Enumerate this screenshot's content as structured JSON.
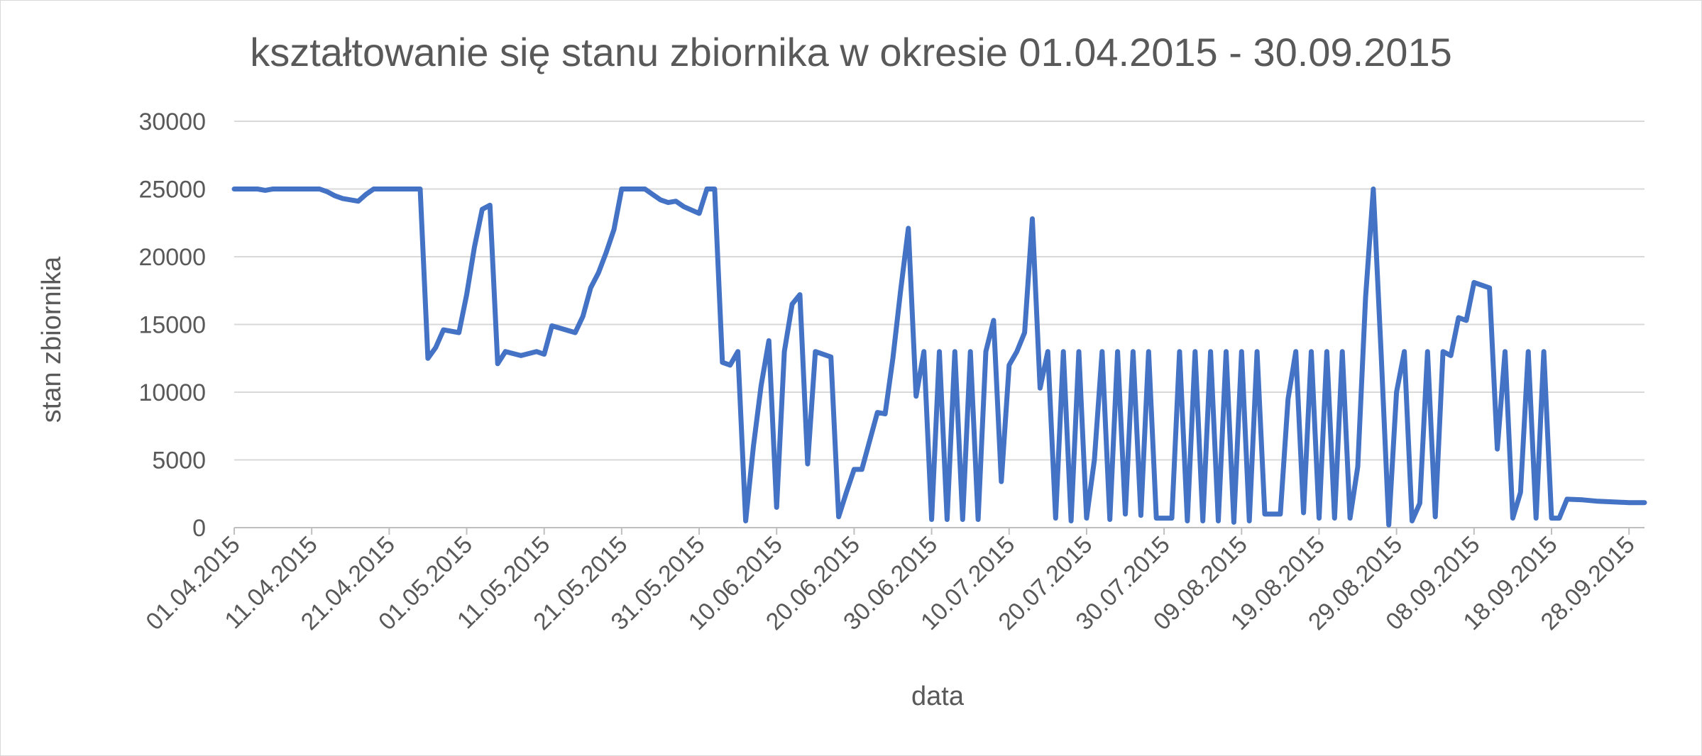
{
  "chart_data": {
    "type": "line",
    "title": "kształtowanie się stanu zbiornika w okresie 01.04.2015 - 30.09.2015",
    "xlabel": "data",
    "ylabel": "stan zbiornika",
    "ylim": [
      0,
      30000
    ],
    "yticks": [
      "0",
      "5000",
      "10000",
      "15000",
      "20000",
      "25000",
      "30000"
    ],
    "x_range": [
      "01.04.2015",
      "30.09.2015"
    ],
    "xticks": [
      "01.04.2015",
      "11.04.2015",
      "21.04.2015",
      "01.05.2015",
      "11.05.2015",
      "21.05.2015",
      "31.05.2015",
      "10.06.2015",
      "20.06.2015",
      "30.06.2015",
      "10.07.2015",
      "20.07.2015",
      "30.07.2015",
      "09.08.2015",
      "19.08.2015",
      "29.08.2015",
      "08.09.2015",
      "18.09.2015",
      "28.09.2015"
    ],
    "grid": true,
    "legend": "none",
    "color": "#4472c4",
    "series": [
      {
        "points": [
          [
            "01.04.2015",
            25000
          ],
          [
            "04.04.2015",
            25000
          ],
          [
            "05.04.2015",
            24900
          ],
          [
            "06.04.2015",
            25000
          ],
          [
            "12.04.2015",
            25000
          ],
          [
            "13.04.2015",
            24800
          ],
          [
            "14.04.2015",
            24500
          ],
          [
            "15.04.2015",
            24300
          ],
          [
            "17.04.2015",
            24100
          ],
          [
            "18.04.2015",
            24600
          ],
          [
            "19.04.2015",
            25000
          ],
          [
            "25.04.2015",
            25000
          ],
          [
            "26.04.2015",
            12500
          ],
          [
            "27.04.2015",
            13300
          ],
          [
            "28.04.2015",
            14600
          ],
          [
            "30.04.2015",
            14400
          ],
          [
            "01.05.2015",
            17200
          ],
          [
            "02.05.2015",
            20700
          ],
          [
            "03.05.2015",
            23500
          ],
          [
            "04.05.2015",
            23800
          ],
          [
            "05.05.2015",
            12100
          ],
          [
            "06.05.2015",
            13000
          ],
          [
            "08.05.2015",
            12700
          ],
          [
            "10.05.2015",
            13000
          ],
          [
            "11.05.2015",
            12800
          ],
          [
            "12.05.2015",
            14900
          ],
          [
            "15.05.2015",
            14400
          ],
          [
            "16.05.2015",
            15600
          ],
          [
            "17.05.2015",
            17700
          ],
          [
            "18.05.2015",
            18800
          ],
          [
            "19.05.2015",
            20300
          ],
          [
            "20.05.2015",
            22000
          ],
          [
            "21.05.2015",
            25000
          ],
          [
            "24.05.2015",
            25000
          ],
          [
            "25.05.2015",
            24600
          ],
          [
            "26.05.2015",
            24200
          ],
          [
            "27.05.2015",
            24000
          ],
          [
            "28.05.2015",
            24100
          ],
          [
            "29.05.2015",
            23700
          ],
          [
            "31.05.2015",
            23200
          ],
          [
            "01.06.2015",
            25000
          ],
          [
            "02.06.2015",
            25000
          ],
          [
            "03.06.2015",
            12200
          ],
          [
            "04.06.2015",
            12000
          ],
          [
            "05.06.2015",
            13000
          ],
          [
            "06.06.2015",
            500
          ],
          [
            "07.06.2015",
            6000
          ],
          [
            "08.06.2015",
            10500
          ],
          [
            "09.06.2015",
            13800
          ],
          [
            "10.06.2015",
            1500
          ],
          [
            "11.06.2015",
            13000
          ],
          [
            "12.06.2015",
            16500
          ],
          [
            "13.06.2015",
            17200
          ],
          [
            "14.06.2015",
            4700
          ],
          [
            "15.06.2015",
            13000
          ],
          [
            "17.06.2015",
            12600
          ],
          [
            "18.06.2015",
            800
          ],
          [
            "19.06.2015",
            2600
          ],
          [
            "20.06.2015",
            4300
          ],
          [
            "21.06.2015",
            4300
          ],
          [
            "23.06.2015",
            8500
          ],
          [
            "24.06.2015",
            8400
          ],
          [
            "25.06.2015",
            12500
          ],
          [
            "26.06.2015",
            17500
          ],
          [
            "27.06.2015",
            22100
          ],
          [
            "28.06.2015",
            9700
          ],
          [
            "29.06.2015",
            13000
          ],
          [
            "30.06.2015",
            600
          ],
          [
            "01.07.2015",
            13000
          ],
          [
            "02.07.2015",
            600
          ],
          [
            "03.07.2015",
            13000
          ],
          [
            "04.07.2015",
            600
          ],
          [
            "05.07.2015",
            13000
          ],
          [
            "06.07.2015",
            600
          ],
          [
            "07.07.2015",
            13000
          ],
          [
            "08.07.2015",
            15300
          ],
          [
            "09.07.2015",
            3400
          ],
          [
            "10.07.2015",
            12000
          ],
          [
            "11.07.2015",
            13000
          ],
          [
            "12.07.2015",
            14400
          ],
          [
            "13.07.2015",
            22800
          ],
          [
            "14.07.2015",
            10300
          ],
          [
            "15.07.2015",
            13000
          ],
          [
            "16.07.2015",
            700
          ],
          [
            "17.07.2015",
            13000
          ],
          [
            "18.07.2015",
            500
          ],
          [
            "19.07.2015",
            13000
          ],
          [
            "20.07.2015",
            700
          ],
          [
            "21.07.2015",
            5000
          ],
          [
            "22.07.2015",
            13000
          ],
          [
            "23.07.2015",
            600
          ],
          [
            "24.07.2015",
            13000
          ],
          [
            "25.07.2015",
            1000
          ],
          [
            "26.07.2015",
            13000
          ],
          [
            "27.07.2015",
            900
          ],
          [
            "28.07.2015",
            13000
          ],
          [
            "29.07.2015",
            700
          ],
          [
            "31.07.2015",
            700
          ],
          [
            "01.08.2015",
            13000
          ],
          [
            "02.08.2015",
            500
          ],
          [
            "03.08.2015",
            13000
          ],
          [
            "04.08.2015",
            500
          ],
          [
            "05.08.2015",
            13000
          ],
          [
            "06.08.2015",
            500
          ],
          [
            "07.08.2015",
            13000
          ],
          [
            "08.08.2015",
            400
          ],
          [
            "09.08.2015",
            13000
          ],
          [
            "10.08.2015",
            500
          ],
          [
            "11.08.2015",
            13000
          ],
          [
            "12.08.2015",
            1000
          ],
          [
            "14.08.2015",
            1000
          ],
          [
            "15.08.2015",
            9500
          ],
          [
            "16.08.2015",
            13000
          ],
          [
            "17.08.2015",
            1100
          ],
          [
            "18.08.2015",
            13000
          ],
          [
            "19.08.2015",
            700
          ],
          [
            "20.08.2015",
            13000
          ],
          [
            "21.08.2015",
            700
          ],
          [
            "22.08.2015",
            13000
          ],
          [
            "23.08.2015",
            700
          ],
          [
            "24.08.2015",
            4500
          ],
          [
            "25.08.2015",
            17000
          ],
          [
            "26.08.2015",
            25000
          ],
          [
            "27.08.2015",
            13000
          ],
          [
            "28.08.2015",
            200
          ],
          [
            "29.08.2015",
            10000
          ],
          [
            "30.08.2015",
            13000
          ],
          [
            "31.08.2015",
            500
          ],
          [
            "01.09.2015",
            1800
          ],
          [
            "02.09.2015",
            13000
          ],
          [
            "03.09.2015",
            800
          ],
          [
            "04.09.2015",
            13000
          ],
          [
            "05.09.2015",
            12700
          ],
          [
            "06.09.2015",
            15500
          ],
          [
            "07.09.2015",
            15300
          ],
          [
            "08.09.2015",
            18100
          ],
          [
            "10.09.2015",
            17700
          ],
          [
            "11.09.2015",
            5800
          ],
          [
            "12.09.2015",
            13000
          ],
          [
            "13.09.2015",
            700
          ],
          [
            "14.09.2015",
            2600
          ],
          [
            "15.09.2015",
            13000
          ],
          [
            "16.09.2015",
            700
          ],
          [
            "17.09.2015",
            13000
          ],
          [
            "18.09.2015",
            700
          ],
          [
            "19.09.2015",
            700
          ],
          [
            "20.09.2015",
            2100
          ],
          [
            "22.09.2015",
            2050
          ],
          [
            "24.09.2015",
            1950
          ],
          [
            "26.09.2015",
            1900
          ],
          [
            "28.09.2015",
            1850
          ],
          [
            "30.09.2015",
            1850
          ]
        ]
      }
    ]
  }
}
